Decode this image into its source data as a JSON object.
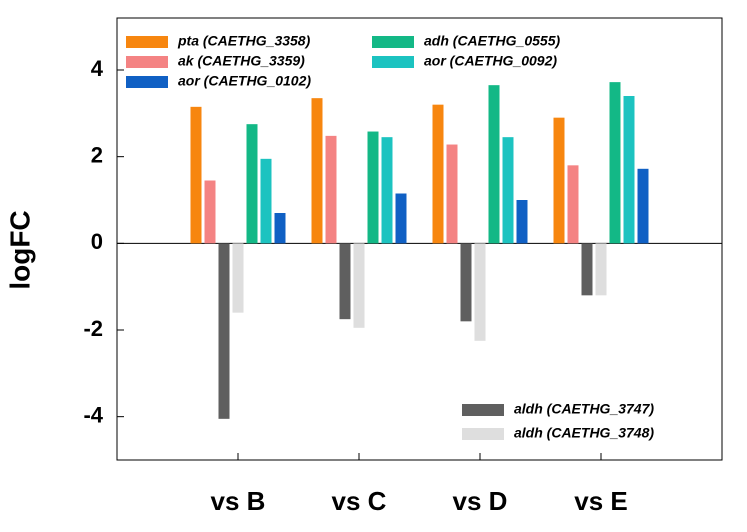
{
  "chart_data": {
    "type": "bar",
    "y_label": "logFC",
    "categories": [
      "vs B",
      "vs C",
      "vs D",
      "vs E"
    ],
    "series": [
      {
        "name": "pta (CAETHG_3358)",
        "color": "#f7860f",
        "values": [
          3.15,
          3.35,
          3.2,
          2.9
        ]
      },
      {
        "name": "ak (CAETHG_3359)",
        "color": "#f48383",
        "values": [
          1.45,
          2.48,
          2.28,
          1.8
        ]
      },
      {
        "name": "aldh (CAETHG_3747)",
        "color": "#5f5f5f",
        "values": [
          -4.05,
          -1.75,
          -1.8,
          -1.2
        ]
      },
      {
        "name": "aldh (CAETHG_3748)",
        "color": "#dedede",
        "values": [
          -1.6,
          -1.95,
          -2.25,
          -1.2
        ]
      },
      {
        "name": "adh (CAETHG_0555)",
        "color": "#13b886",
        "values": [
          2.75,
          2.58,
          3.65,
          3.72
        ]
      },
      {
        "name": "aor (CAETHG_0092)",
        "color": "#1cc3c0",
        "values": [
          1.95,
          2.45,
          2.45,
          3.4
        ]
      },
      {
        "name": "aor (CAETHG_0102)",
        "color": "#1060c4",
        "values": [
          0.7,
          1.15,
          1.0,
          1.72
        ]
      }
    ],
    "ylim": [
      -5,
      5.2
    ],
    "yticks": [
      -4,
      -2,
      0,
      2,
      4
    ],
    "grid": false
  }
}
